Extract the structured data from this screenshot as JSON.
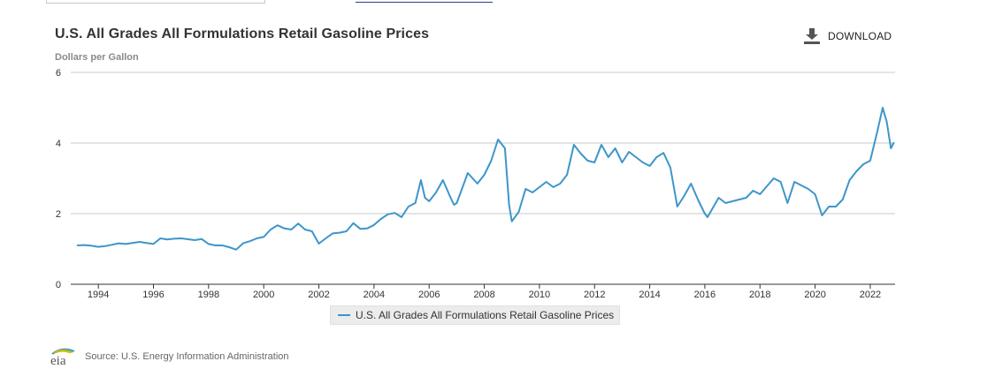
{
  "header": {
    "title": "U.S. All Grades All Formulations Retail Gasoline Prices",
    "unit_label": "Dollars per Gallon",
    "download_label": "DOWNLOAD"
  },
  "footer": {
    "logo_text": "eia",
    "source_text": "Source: U.S. Energy Information Administration"
  },
  "colors": {
    "series": "#3d96c9",
    "grid": "#c8c8c8",
    "axis": "#333333"
  },
  "chart_data": {
    "type": "line",
    "title": "U.S. All Grades All Formulations Retail Gasoline Prices",
    "ylabel": "Dollars per Gallon",
    "xlabel": "",
    "xlim": [
      1993.0,
      2022.9
    ],
    "ylim": [
      0,
      6
    ],
    "yticks": [
      0,
      2,
      4,
      6
    ],
    "xticks": [
      1994,
      1996,
      1998,
      2000,
      2002,
      2004,
      2006,
      2008,
      2010,
      2012,
      2014,
      2016,
      2018,
      2020,
      2022
    ],
    "grid": true,
    "legend": "bottom-center",
    "series": [
      {
        "name": "U.S. All Grades All Formulations Retail Gasoline Prices",
        "points": [
          [
            1993.25,
            1.1
          ],
          [
            1993.5,
            1.11
          ],
          [
            1993.75,
            1.09
          ],
          [
            1994.0,
            1.06
          ],
          [
            1994.25,
            1.08
          ],
          [
            1994.5,
            1.12
          ],
          [
            1994.75,
            1.16
          ],
          [
            1995.0,
            1.14
          ],
          [
            1995.5,
            1.2
          ],
          [
            1995.75,
            1.17
          ],
          [
            1996.0,
            1.14
          ],
          [
            1996.25,
            1.3
          ],
          [
            1996.5,
            1.27
          ],
          [
            1996.75,
            1.29
          ],
          [
            1997.0,
            1.3
          ],
          [
            1997.5,
            1.25
          ],
          [
            1997.75,
            1.28
          ],
          [
            1998.0,
            1.14
          ],
          [
            1998.25,
            1.1
          ],
          [
            1998.5,
            1.1
          ],
          [
            1998.75,
            1.05
          ],
          [
            1999.0,
            0.98
          ],
          [
            1999.25,
            1.16
          ],
          [
            1999.5,
            1.22
          ],
          [
            1999.75,
            1.3
          ],
          [
            2000.0,
            1.34
          ],
          [
            2000.25,
            1.55
          ],
          [
            2000.5,
            1.67
          ],
          [
            2000.75,
            1.58
          ],
          [
            2001.0,
            1.55
          ],
          [
            2001.25,
            1.72
          ],
          [
            2001.5,
            1.55
          ],
          [
            2001.75,
            1.5
          ],
          [
            2002.0,
            1.15
          ],
          [
            2002.25,
            1.3
          ],
          [
            2002.5,
            1.44
          ],
          [
            2002.75,
            1.46
          ],
          [
            2003.0,
            1.5
          ],
          [
            2003.25,
            1.73
          ],
          [
            2003.5,
            1.57
          ],
          [
            2003.75,
            1.58
          ],
          [
            2004.0,
            1.68
          ],
          [
            2004.25,
            1.85
          ],
          [
            2004.5,
            1.98
          ],
          [
            2004.75,
            2.02
          ],
          [
            2005.0,
            1.9
          ],
          [
            2005.25,
            2.2
          ],
          [
            2005.5,
            2.3
          ],
          [
            2005.7,
            2.95
          ],
          [
            2005.85,
            2.45
          ],
          [
            2006.0,
            2.35
          ],
          [
            2006.25,
            2.6
          ],
          [
            2006.5,
            2.95
          ],
          [
            2006.75,
            2.5
          ],
          [
            2006.9,
            2.25
          ],
          [
            2007.0,
            2.3
          ],
          [
            2007.4,
            3.15
          ],
          [
            2007.75,
            2.85
          ],
          [
            2008.0,
            3.1
          ],
          [
            2008.25,
            3.5
          ],
          [
            2008.5,
            4.1
          ],
          [
            2008.75,
            3.85
          ],
          [
            2008.9,
            2.25
          ],
          [
            2009.0,
            1.78
          ],
          [
            2009.25,
            2.05
          ],
          [
            2009.5,
            2.7
          ],
          [
            2009.75,
            2.6
          ],
          [
            2010.0,
            2.75
          ],
          [
            2010.25,
            2.9
          ],
          [
            2010.5,
            2.75
          ],
          [
            2010.75,
            2.85
          ],
          [
            2011.0,
            3.1
          ],
          [
            2011.25,
            3.95
          ],
          [
            2011.5,
            3.7
          ],
          [
            2011.75,
            3.5
          ],
          [
            2012.0,
            3.45
          ],
          [
            2012.25,
            3.95
          ],
          [
            2012.5,
            3.6
          ],
          [
            2012.75,
            3.85
          ],
          [
            2013.0,
            3.45
          ],
          [
            2013.25,
            3.75
          ],
          [
            2013.5,
            3.6
          ],
          [
            2013.75,
            3.45
          ],
          [
            2014.0,
            3.35
          ],
          [
            2014.25,
            3.6
          ],
          [
            2014.5,
            3.72
          ],
          [
            2014.75,
            3.3
          ],
          [
            2015.0,
            2.2
          ],
          [
            2015.25,
            2.5
          ],
          [
            2015.5,
            2.85
          ],
          [
            2015.75,
            2.4
          ],
          [
            2016.0,
            2.0
          ],
          [
            2016.1,
            1.9
          ],
          [
            2016.5,
            2.45
          ],
          [
            2016.75,
            2.3
          ],
          [
            2017.0,
            2.35
          ],
          [
            2017.5,
            2.45
          ],
          [
            2017.75,
            2.65
          ],
          [
            2018.0,
            2.55
          ],
          [
            2018.5,
            3.0
          ],
          [
            2018.75,
            2.9
          ],
          [
            2019.0,
            2.3
          ],
          [
            2019.25,
            2.9
          ],
          [
            2019.5,
            2.8
          ],
          [
            2019.75,
            2.7
          ],
          [
            2020.0,
            2.55
          ],
          [
            2020.25,
            1.95
          ],
          [
            2020.5,
            2.2
          ],
          [
            2020.75,
            2.2
          ],
          [
            2021.0,
            2.4
          ],
          [
            2021.25,
            2.95
          ],
          [
            2021.5,
            3.2
          ],
          [
            2021.75,
            3.4
          ],
          [
            2022.0,
            3.5
          ],
          [
            2022.25,
            4.3
          ],
          [
            2022.45,
            5.0
          ],
          [
            2022.6,
            4.6
          ],
          [
            2022.75,
            3.85
          ],
          [
            2022.85,
            4.0
          ]
        ]
      }
    ]
  }
}
